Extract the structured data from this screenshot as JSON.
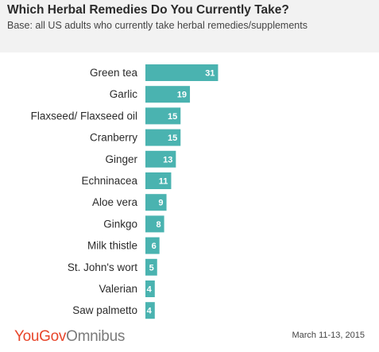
{
  "header": {
    "title": "Which Herbal Remedies Do You Currently Take?",
    "subtitle": "Base: all US adults who currently take herbal remedies/supplements"
  },
  "footer": {
    "brand": "YouGov",
    "product": "Omnibus",
    "date": "March 11-13, 2015"
  },
  "colors": {
    "bar": "#4ab3b0",
    "header_bg": "#f2f2f2",
    "label_text": "#2b2b2b",
    "value_text": "#ffffff",
    "brand": "#e8462b"
  },
  "chart_data": {
    "type": "bar",
    "orientation": "horizontal",
    "title": "Which Herbal Remedies Do You Currently Take?",
    "categories": [
      "Green tea",
      "Garlic",
      "Flaxseed/ Flaxseed oil",
      "Cranberry",
      "Ginger",
      "Echninacea",
      "Aloe vera",
      "Ginkgo",
      "Milk thistle",
      "St. John's wort",
      "Valerian",
      "Saw palmetto"
    ],
    "values": [
      31,
      19,
      15,
      15,
      13,
      11,
      9,
      8,
      6,
      5,
      4,
      4
    ],
    "xlim": [
      0,
      100
    ],
    "grid": false,
    "legend": "none"
  }
}
